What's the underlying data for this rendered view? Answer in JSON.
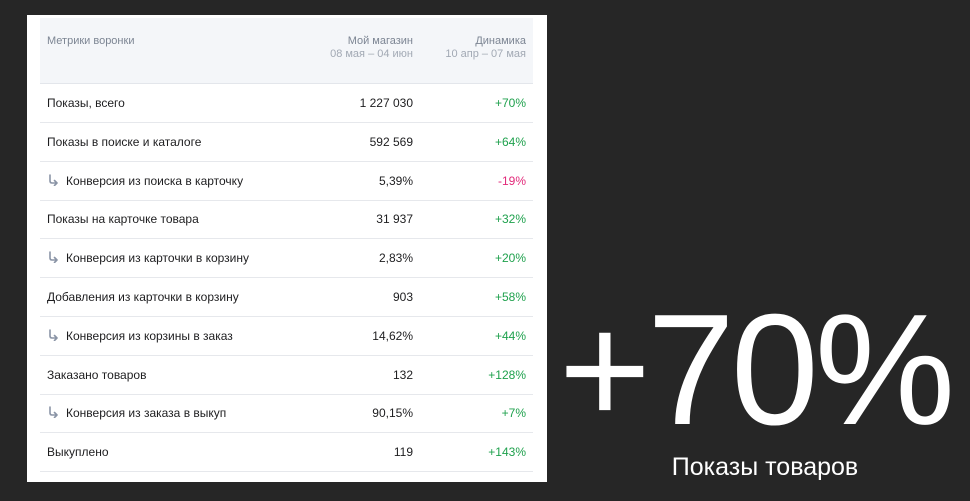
{
  "table": {
    "header": {
      "metric": "Метрики воронки",
      "shop": "Мой магазин",
      "shop_period": "08 мая – 04 июн",
      "dynamics": "Динамика",
      "dynamics_period": "10 апр – 07 мая"
    },
    "rows": [
      {
        "label": "Показы, всего",
        "value": "1 227 030",
        "change": "+70%",
        "sub": false
      },
      {
        "label": "Показы в поиске и каталоге",
        "value": "592 569",
        "change": "+64%",
        "sub": false
      },
      {
        "label": "Конверсия из поиска в карточку",
        "value": "5,39%",
        "change": "-19%",
        "sub": true
      },
      {
        "label": "Показы на карточке товара",
        "value": "31 937",
        "change": "+32%",
        "sub": false
      },
      {
        "label": "Конверсия из карточки в корзину",
        "value": "2,83%",
        "change": "+20%",
        "sub": true
      },
      {
        "label": "Добавления из карточки в корзину",
        "value": "903",
        "change": "+58%",
        "sub": false
      },
      {
        "label": "Конверсия из корзины в заказ",
        "value": "14,62%",
        "change": "+44%",
        "sub": true
      },
      {
        "label": "Заказано товаров",
        "value": "132",
        "change": "+128%",
        "sub": false
      },
      {
        "label": "Конверсия из заказа в выкуп",
        "value": "90,15%",
        "change": "+7%",
        "sub": true
      },
      {
        "label": "Выкуплено",
        "value": "119",
        "change": "+143%",
        "sub": false
      }
    ]
  },
  "highlight": {
    "value": "+70%",
    "caption": "Показы товаров"
  }
}
